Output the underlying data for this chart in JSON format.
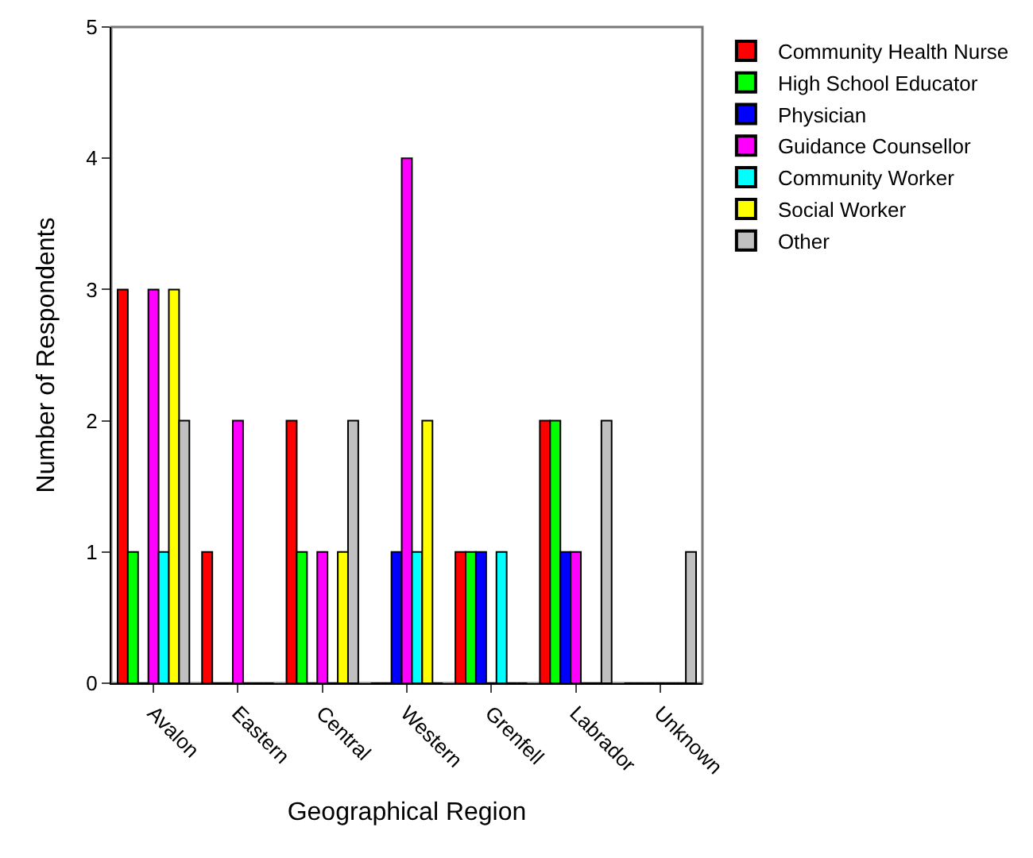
{
  "chart_data": {
    "type": "bar",
    "xlabel": "Geographical Region",
    "ylabel": "Number of Respondents",
    "categories": [
      "Avalon",
      "Eastern",
      "Central",
      "Western",
      "Grenfell",
      "Labrador",
      "Unknown"
    ],
    "series": [
      {
        "name": "Community Health Nurse",
        "color": "#ff0000",
        "values": [
          3,
          1,
          2,
          0,
          1,
          2,
          0
        ]
      },
      {
        "name": "High School Educator",
        "color": "#00ff00",
        "values": [
          1,
          0,
          1,
          0,
          1,
          2,
          0
        ]
      },
      {
        "name": "Physician",
        "color": "#0000ff",
        "values": [
          0,
          0,
          0,
          1,
          1,
          1,
          0
        ]
      },
      {
        "name": "Guidance Counsellor",
        "color": "#ff00ff",
        "values": [
          3,
          2,
          1,
          4,
          0,
          1,
          0
        ]
      },
      {
        "name": "Community Worker",
        "color": "#00ffff",
        "values": [
          1,
          0,
          0,
          1,
          1,
          0,
          0
        ]
      },
      {
        "name": "Social Worker",
        "color": "#ffff00",
        "values": [
          3,
          0,
          1,
          2,
          0,
          0,
          0
        ]
      },
      {
        "name": "Other",
        "color": "#c0c0c0",
        "values": [
          2,
          0,
          2,
          0,
          0,
          2,
          1
        ]
      }
    ],
    "ylim": [
      0,
      5
    ],
    "yticks": [
      0,
      1,
      2,
      3,
      4,
      5
    ],
    "grid": false,
    "legend": "right"
  }
}
